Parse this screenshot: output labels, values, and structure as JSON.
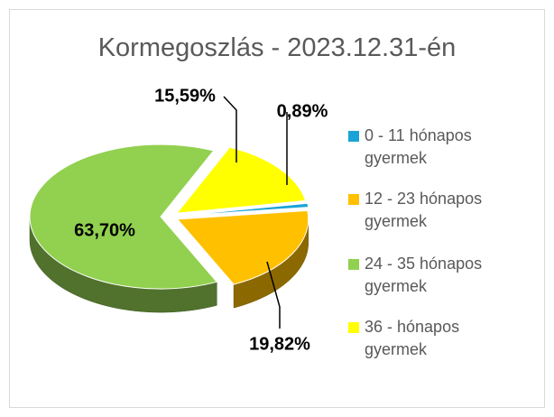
{
  "chart_data": {
    "type": "pie",
    "title": "Kormegoszlás  - 2023.12.31-én",
    "categories": [
      "0 - 11 hónapos gyermek",
      "12 - 23 hónapos gyermek",
      "24 - 35 hónapos gyermek",
      "36 - hónapos gyermek"
    ],
    "values": [
      0.89,
      19.82,
      63.7,
      15.59
    ],
    "value_labels": [
      "0,89%",
      "19,82%",
      "63,70%",
      "15,59%"
    ],
    "colors": [
      "#1aa3d6",
      "#ffc000",
      "#92d050",
      "#ffff00"
    ],
    "legend": "right"
  }
}
